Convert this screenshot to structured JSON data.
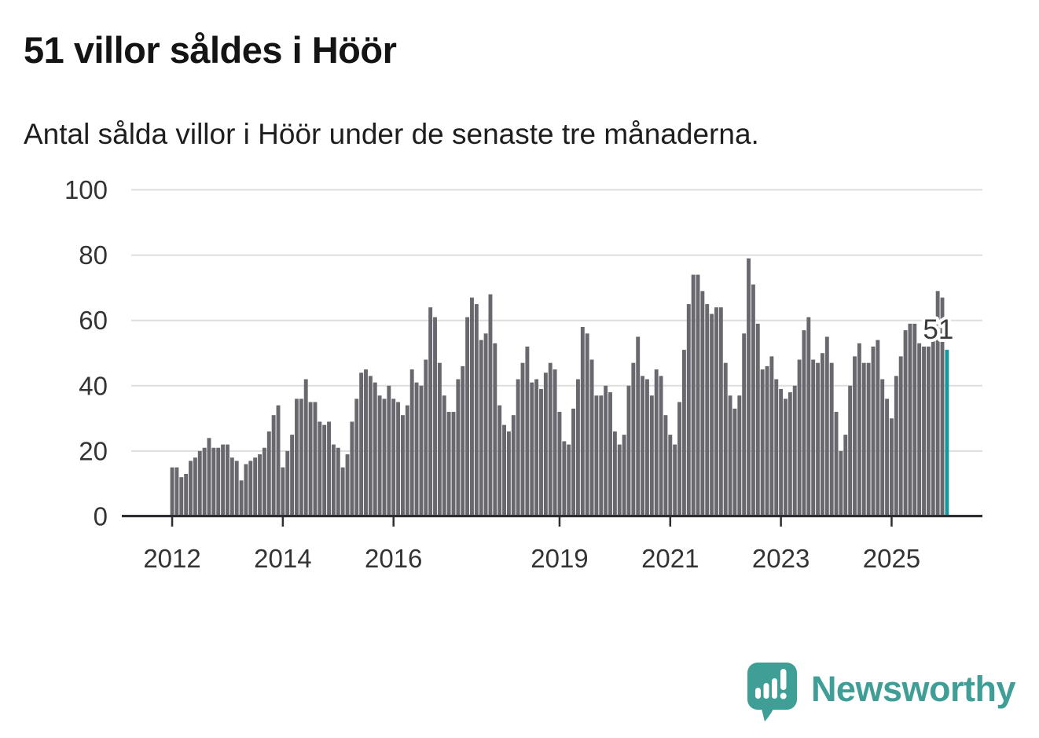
{
  "header": {
    "title": "51 villor såldes i Höör",
    "subtitle": "Antal sålda villor i Höör under de senaste tre månaderna."
  },
  "chart_data": {
    "type": "bar",
    "title": "51 villor såldes i Höör",
    "subtitle": "Antal sålda villor i Höör under de senaste tre månaderna.",
    "ylim": [
      0,
      100
    ],
    "y_ticks": [
      0,
      20,
      40,
      60,
      80,
      100
    ],
    "x_ticks": [
      {
        "label": "2012",
        "index": 0
      },
      {
        "label": "2014",
        "index": 24
      },
      {
        "label": "2016",
        "index": 48
      },
      {
        "label": "2019",
        "index": 84
      },
      {
        "label": "2021",
        "index": 108
      },
      {
        "label": "2023",
        "index": 132
      },
      {
        "label": "2025",
        "index": 156
      }
    ],
    "values": [
      15,
      15,
      12,
      13,
      17,
      18,
      20,
      21,
      24,
      21,
      21,
      22,
      22,
      18,
      17,
      11,
      16,
      17,
      18,
      19,
      21,
      26,
      31,
      34,
      15,
      20,
      25,
      36,
      36,
      42,
      35,
      35,
      29,
      28,
      29,
      22,
      21,
      15,
      19,
      29,
      36,
      44,
      45,
      43,
      41,
      37,
      36,
      40,
      36,
      35,
      31,
      34,
      45,
      41,
      40,
      48,
      64,
      61,
      47,
      37,
      32,
      32,
      42,
      46,
      61,
      67,
      65,
      54,
      56,
      68,
      53,
      34,
      28,
      26,
      31,
      42,
      47,
      52,
      41,
      42,
      39,
      44,
      47,
      45,
      32,
      23,
      22,
      33,
      42,
      58,
      56,
      48,
      37,
      37,
      40,
      38,
      26,
      22,
      25,
      40,
      47,
      55,
      43,
      42,
      37,
      45,
      43,
      31,
      25,
      22,
      35,
      51,
      65,
      74,
      74,
      69,
      65,
      62,
      64,
      64,
      47,
      37,
      33,
      37,
      56,
      79,
      71,
      59,
      45,
      46,
      49,
      42,
      39,
      36,
      38,
      40,
      48,
      57,
      61,
      48,
      47,
      50,
      55,
      47,
      32,
      20,
      25,
      40,
      49,
      53,
      47,
      47,
      52,
      54,
      42,
      36,
      30,
      43,
      49,
      57,
      59,
      59,
      53,
      52,
      52,
      54,
      69,
      67,
      51
    ],
    "highlight": {
      "index": 168,
      "value": 51,
      "label": "51",
      "color": "#12999b"
    },
    "bar_color": "#68686e",
    "grid_color": "#dddddd",
    "axis_color": "#2d2d32",
    "label_color": "#333333",
    "grid": true,
    "legend": "none"
  },
  "footer": {
    "brand": "Newsworthy",
    "brand_color": "#3f9e96",
    "logo_icon": "speech-bubble-bar-chart-icon"
  }
}
